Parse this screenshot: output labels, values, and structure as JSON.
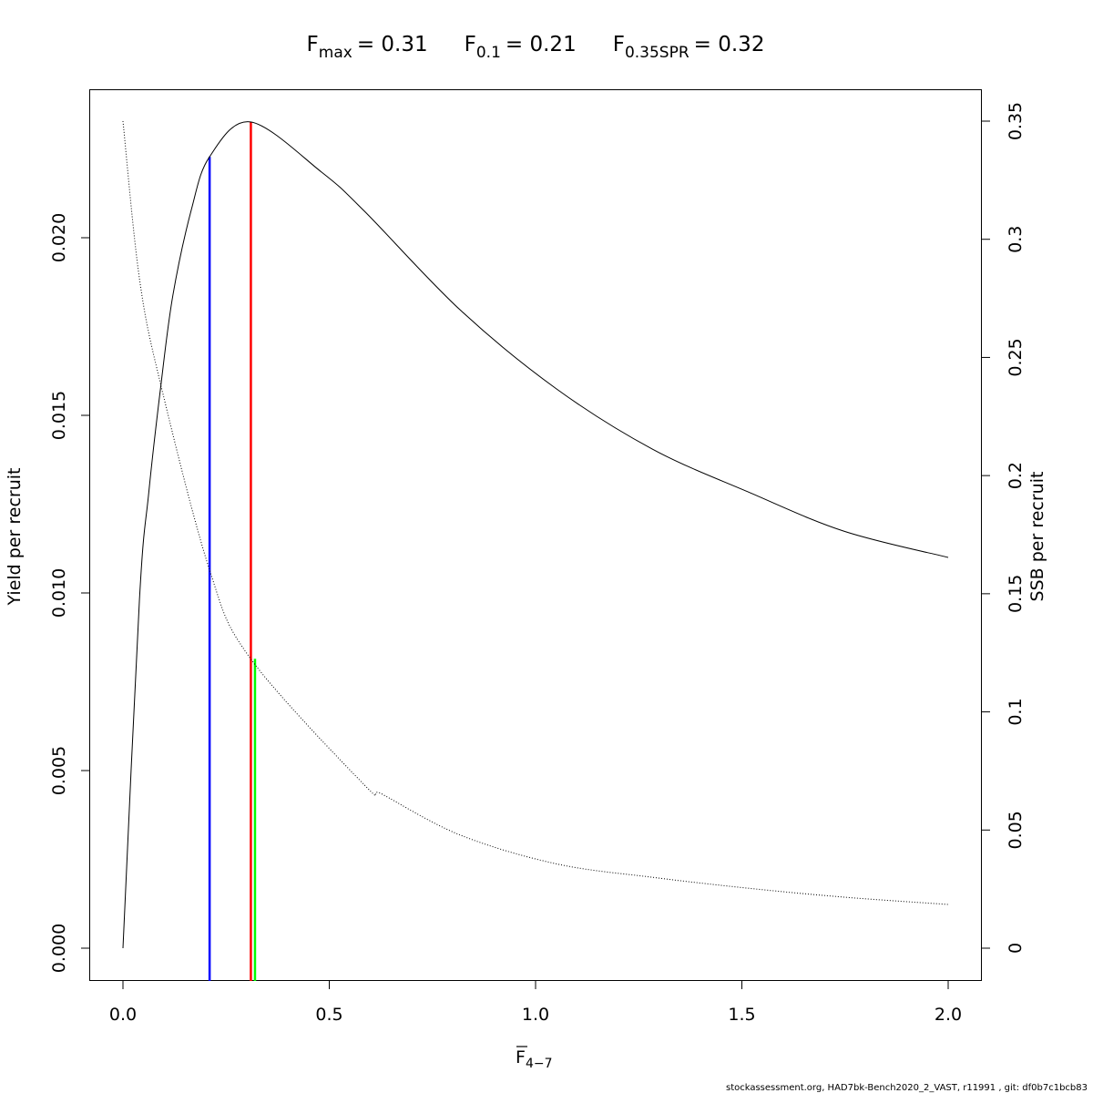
{
  "chart_data": {
    "type": "line",
    "title": {
      "fmax": {
        "base": "F",
        "sub": "max",
        "value": "= 0.31"
      },
      "f01": {
        "base": "F",
        "sub": "0.1",
        "value": "= 0.21"
      },
      "fspr": {
        "base": "F",
        "sub": "0.35SPR",
        "value": "= 0.32"
      }
    },
    "xlabel": {
      "base": "F",
      "sub": "4−7"
    },
    "ylabel_left": "Yield per recruit",
    "ylabel_right": "SSB per recruit",
    "xlim": [
      0,
      2
    ],
    "ylim_left": [
      0,
      0.0233
    ],
    "ylim_right": [
      0,
      0.35
    ],
    "x_ticks": [
      "0.0",
      "0.5",
      "1.0",
      "1.5",
      "2.0"
    ],
    "y_left_ticks": [
      "0.000",
      "0.005",
      "0.010",
      "0.015",
      "0.020"
    ],
    "y_right_ticks": [
      "0",
      "0.05",
      "0.1",
      "0.15",
      "0.2",
      "0.25",
      "0.3",
      "0.35"
    ],
    "grid": false,
    "series": [
      {
        "axis": "left",
        "style": "solid",
        "color": "#000000",
        "x": [
          0,
          0.04,
          0.0625,
          0.092,
          0.121,
          0.166,
          0.21,
          0.309,
          0.481,
          0.585,
          0.817,
          1.05,
          1.283,
          1.514,
          1.747,
          2.0
        ],
        "y": [
          0,
          0.00982,
          0.01282,
          0.01585,
          0.01838,
          0.0208,
          0.02228,
          0.02326,
          0.02185,
          0.02075,
          0.01797,
          0.01575,
          0.01405,
          0.01285,
          0.01174,
          0.011
        ]
      },
      {
        "axis": "right",
        "style": "dotted",
        "color": "#000000",
        "x": [
          0,
          0.04,
          0.092,
          0.21,
          0.309,
          0.585,
          0.629,
          0.817,
          1.05,
          1.283,
          1.514,
          1.747,
          2.0
        ],
        "y": [
          0.35,
          0.2833,
          0.2382,
          0.16,
          0.1226,
          0.0691,
          0.0651,
          0.0479,
          0.0357,
          0.03,
          0.0254,
          0.0216,
          0.0185
        ]
      }
    ],
    "reference_lines": [
      {
        "label": "F0.1",
        "x": 0.21,
        "axis": "left",
        "top": 0.02228,
        "color": "#0000ff"
      },
      {
        "label": "Fmax",
        "x": 0.31,
        "axis": "left",
        "top": 0.02326,
        "color": "#ff0000"
      },
      {
        "label": "F0.35SPR",
        "x": 0.32,
        "axis": "right",
        "top": 0.1225,
        "color": "#00ff00"
      }
    ]
  },
  "footer": "stockassessment.org, HAD7bk-Bench2020_2_VAST, r11991 , git: df0b7c1bcb83"
}
